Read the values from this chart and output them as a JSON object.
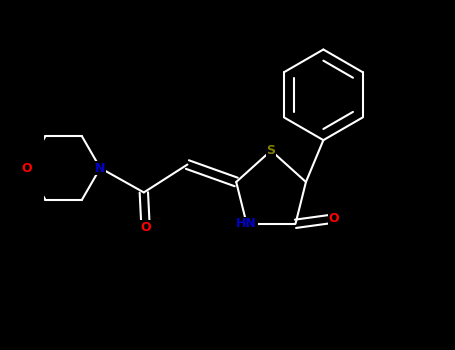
{
  "bg_color": "#000000",
  "bond_color": "#ffffff",
  "N_color": "#0000cd",
  "O_color": "#ff0000",
  "S_color": "#808000",
  "bond_width": 1.5,
  "font_size_atom": 9,
  "fig_width": 4.55,
  "fig_height": 3.5,
  "dpi": 100,
  "xlim": [
    -1.0,
    9.5
  ],
  "ylim": [
    -4.5,
    5.5
  ]
}
